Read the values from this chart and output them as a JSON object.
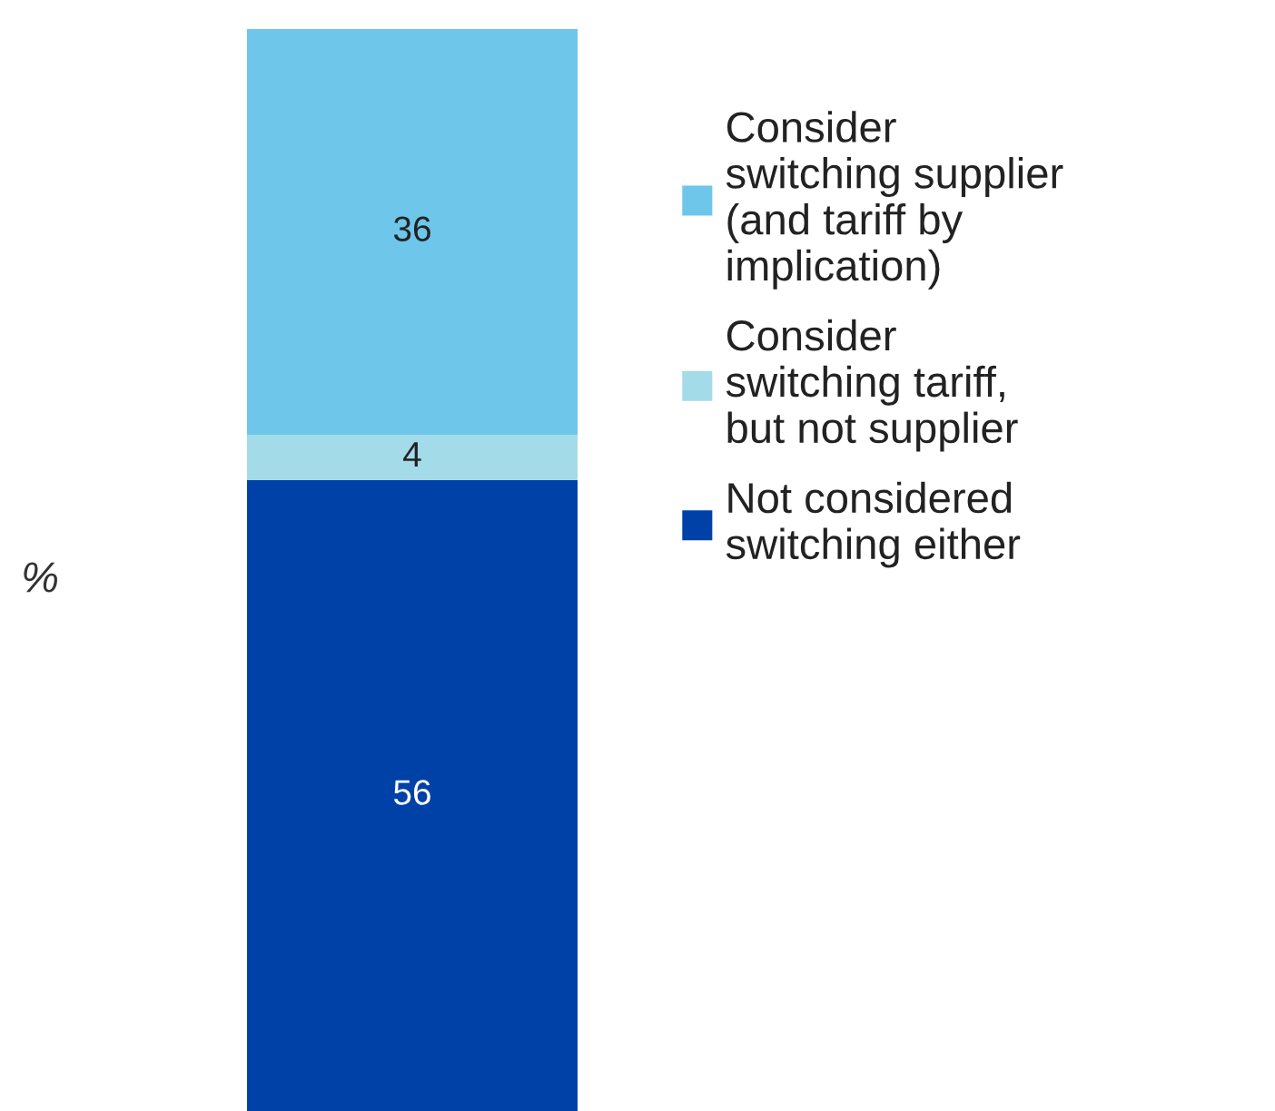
{
  "chart_data": {
    "type": "bar",
    "stacked": true,
    "annotations": [
      "%"
    ],
    "categories": [
      null
    ],
    "data_labels": true,
    "legend": "right",
    "grid": false,
    "series": [
      {
        "name": "Not considered\nswitching either",
        "color": "#0041a8",
        "values": [
          56
        ]
      },
      {
        "name": "Consider\nswitching tariff,\nbut not supplier",
        "color": "#a3dbe8",
        "values": [
          4
        ]
      },
      {
        "name": "Consider\nswitching supplier\n(and tariff by\nimplication)",
        "color": "#6ec6ea",
        "values": [
          36
        ]
      }
    ]
  }
}
